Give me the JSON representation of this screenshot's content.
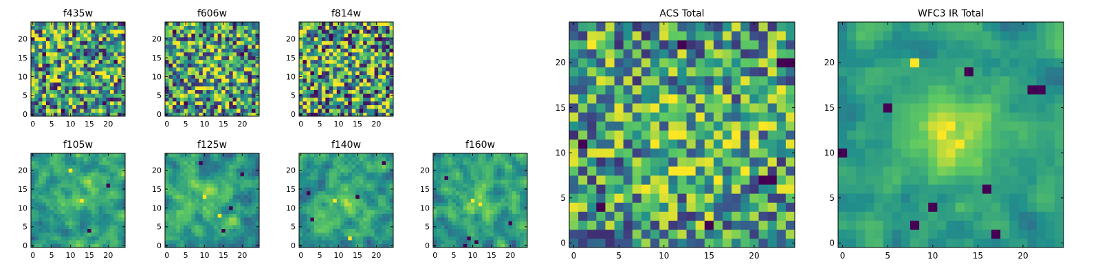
{
  "figure": {
    "colormap": [
      "#440154",
      "#3b528b",
      "#21918c",
      "#5ec962",
      "#fde725"
    ],
    "background": "#ffffff"
  },
  "chart_data": [
    {
      "type": "heatmap",
      "title": "f435w",
      "xticks": [
        0,
        5,
        10,
        15,
        20
      ],
      "yticks": [
        0,
        5,
        10,
        15,
        20
      ],
      "xlim": [
        -0.5,
        24.5
      ],
      "ylim": [
        -0.5,
        24.5
      ],
      "grid_size": [
        25,
        25
      ],
      "seed": 11,
      "blob": {
        "cx": 12,
        "cy": 12,
        "sigma": 5,
        "amp": 0.05
      },
      "noise": 0.5,
      "smooth": 0,
      "hot": [
        [
          10,
          21
        ],
        [
          12,
          20
        ],
        [
          20,
          10
        ],
        [
          2,
          13
        ]
      ],
      "cold": [
        [
          3,
          16
        ],
        [
          8,
          1
        ],
        [
          19,
          3
        ],
        [
          22,
          14
        ]
      ]
    },
    {
      "type": "heatmap",
      "title": "f606w",
      "xticks": [
        0,
        5,
        10,
        15,
        20
      ],
      "yticks": [
        0,
        5,
        10,
        15,
        20
      ],
      "xlim": [
        -0.5,
        24.5
      ],
      "ylim": [
        -0.5,
        24.5
      ],
      "grid_size": [
        25,
        25
      ],
      "seed": 23,
      "blob": {
        "cx": 12,
        "cy": 12,
        "sigma": 4,
        "amp": 0.15
      },
      "noise": 0.5,
      "smooth": 0,
      "hot": [
        [
          12,
          13
        ],
        [
          13,
          11
        ],
        [
          14,
          12
        ]
      ],
      "cold": [
        [
          2,
          22
        ],
        [
          20,
          16
        ],
        [
          5,
          3
        ],
        [
          23,
          1
        ]
      ]
    },
    {
      "type": "heatmap",
      "title": "f814w",
      "xticks": [
        0,
        5,
        10,
        15,
        20
      ],
      "yticks": [
        0,
        5,
        10,
        15,
        20
      ],
      "xlim": [
        -0.5,
        24.5
      ],
      "ylim": [
        -0.5,
        24.5
      ],
      "grid_size": [
        25,
        25
      ],
      "seed": 37,
      "blob": {
        "cx": 12,
        "cy": 12,
        "sigma": 4,
        "amp": 0.08
      },
      "noise": 0.55,
      "smooth": 0,
      "hot": [
        [
          5,
          17
        ],
        [
          16,
          19
        ],
        [
          9,
          6
        ]
      ],
      "cold": [
        [
          3,
          11
        ],
        [
          21,
          20
        ],
        [
          13,
          3
        ],
        [
          23,
          7
        ]
      ]
    },
    {
      "type": "heatmap",
      "title": "f105w",
      "xticks": [
        0,
        5,
        10,
        15,
        20
      ],
      "yticks": [
        0,
        5,
        10,
        15,
        20
      ],
      "xlim": [
        -0.5,
        24.5
      ],
      "ylim": [
        -0.5,
        24.5
      ],
      "grid_size": [
        25,
        25
      ],
      "seed": 41,
      "blob": {
        "cx": 13,
        "cy": 14,
        "sigma": 4,
        "amp": 0.18
      },
      "noise": 0.45,
      "smooth": 1,
      "hot": [
        [
          13,
          12
        ],
        [
          10,
          20
        ]
      ],
      "cold": [
        [
          15,
          4
        ],
        [
          20,
          16
        ]
      ]
    },
    {
      "type": "heatmap",
      "title": "f125w",
      "xticks": [
        0,
        5,
        10,
        15,
        20
      ],
      "yticks": [
        0,
        5,
        10,
        15,
        20
      ],
      "xlim": [
        -0.5,
        24.5
      ],
      "ylim": [
        -0.5,
        24.5
      ],
      "grid_size": [
        25,
        25
      ],
      "seed": 53,
      "blob": {
        "cx": 11,
        "cy": 13,
        "sigma": 4,
        "amp": 0.15
      },
      "noise": 0.45,
      "smooth": 1,
      "hot": [
        [
          10,
          13
        ],
        [
          14,
          8
        ]
      ],
      "cold": [
        [
          20,
          19
        ],
        [
          15,
          4
        ],
        [
          9,
          22
        ],
        [
          17,
          10
        ]
      ]
    },
    {
      "type": "heatmap",
      "title": "f140w",
      "xticks": [
        0,
        5,
        10,
        15,
        20
      ],
      "yticks": [
        0,
        5,
        10,
        15,
        20
      ],
      "xlim": [
        -0.5,
        24.5
      ],
      "ylim": [
        -0.5,
        24.5
      ],
      "grid_size": [
        25,
        25
      ],
      "seed": 67,
      "blob": {
        "cx": 11,
        "cy": 12,
        "sigma": 4,
        "amp": 0.18
      },
      "noise": 0.45,
      "smooth": 1,
      "hot": [
        [
          9,
          12
        ],
        [
          13,
          2
        ]
      ],
      "cold": [
        [
          15,
          13
        ],
        [
          3,
          7
        ],
        [
          22,
          22
        ],
        [
          2,
          14
        ]
      ]
    },
    {
      "type": "heatmap",
      "title": "f160w",
      "xticks": [
        0,
        5,
        10,
        15,
        20
      ],
      "yticks": [
        0,
        5,
        10,
        15,
        20
      ],
      "xlim": [
        -0.5,
        24.5
      ],
      "ylim": [
        -0.5,
        24.5
      ],
      "grid_size": [
        25,
        25
      ],
      "seed": 79,
      "blob": {
        "cx": 11,
        "cy": 12,
        "sigma": 4,
        "amp": 0.22
      },
      "noise": 0.45,
      "smooth": 1,
      "hot": [
        [
          10,
          12
        ],
        [
          12,
          11
        ]
      ],
      "cold": [
        [
          8,
          0
        ],
        [
          9,
          2
        ],
        [
          11,
          1
        ],
        [
          3,
          18
        ],
        [
          20,
          6
        ]
      ]
    },
    {
      "type": "heatmap",
      "title": "ACS Total",
      "xticks": [
        0,
        5,
        10,
        15,
        20
      ],
      "yticks": [
        0,
        5,
        10,
        15,
        20
      ],
      "xlim": [
        -0.5,
        24.5
      ],
      "ylim": [
        -0.5,
        24.5
      ],
      "grid_size": [
        25,
        25
      ],
      "seed": 97,
      "blob": {
        "cx": 13,
        "cy": 12,
        "sigma": 5,
        "amp": 0.1
      },
      "noise": 0.42,
      "smooth": 0,
      "hot": [
        [
          2,
          22
        ],
        [
          11,
          12
        ],
        [
          21,
          13
        ],
        [
          16,
          7
        ]
      ],
      "cold": [
        [
          1,
          11
        ],
        [
          3,
          4
        ],
        [
          12,
          22
        ],
        [
          23,
          20
        ],
        [
          24,
          20
        ],
        [
          21,
          7
        ],
        [
          22,
          7
        ],
        [
          15,
          2
        ]
      ]
    },
    {
      "type": "heatmap",
      "title": "WFC3 IR Total",
      "xticks": [
        0,
        5,
        10,
        15,
        20
      ],
      "yticks": [
        0,
        5,
        10,
        15,
        20
      ],
      "xlim": [
        -0.5,
        24.5
      ],
      "ylim": [
        -0.5,
        24.5
      ],
      "grid_size": [
        25,
        25
      ],
      "seed": 113,
      "blob": {
        "cx": 12,
        "cy": 12,
        "sigma": 3.5,
        "amp": 0.35
      },
      "noise": 0.3,
      "smooth": 1,
      "hot": [
        [
          8,
          20
        ],
        [
          11,
          12
        ],
        [
          12,
          13
        ],
        [
          13,
          11
        ]
      ],
      "cold": [
        [
          0,
          10
        ],
        [
          5,
          15
        ],
        [
          14,
          19
        ],
        [
          21,
          17
        ],
        [
          22,
          17
        ],
        [
          8,
          2
        ],
        [
          10,
          4
        ],
        [
          17,
          1
        ],
        [
          16,
          6
        ]
      ]
    }
  ]
}
